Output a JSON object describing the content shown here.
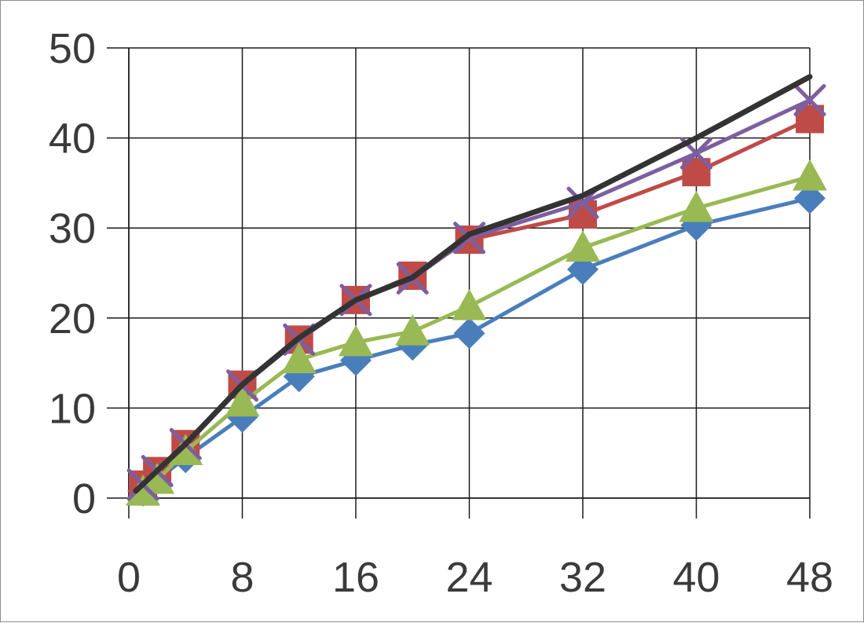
{
  "chart_data": {
    "type": "line",
    "title": "",
    "xlabel": "",
    "ylabel": "",
    "xlim": [
      0,
      48
    ],
    "ylim": [
      0,
      50
    ],
    "x_ticks": [
      "0",
      "8",
      "16",
      "24",
      "32",
      "40",
      "48"
    ],
    "y_ticks": [
      "0",
      "10",
      "20",
      "30",
      "40",
      "50"
    ],
    "grid": true,
    "legend": "none",
    "series": [
      {
        "color": "#4a7ebb",
        "marker": "diamond",
        "points": [
          [
            1,
            0.8
          ],
          [
            4,
            4.5
          ],
          [
            8,
            9.0
          ],
          [
            12,
            13.5
          ],
          [
            16,
            15.3
          ],
          [
            20,
            17.0
          ],
          [
            24,
            18.3
          ],
          [
            32,
            25.4
          ],
          [
            40,
            30.3
          ],
          [
            48,
            33.3
          ]
        ]
      },
      {
        "color": "#be4b48",
        "marker": "square",
        "points": [
          [
            1,
            1.5
          ],
          [
            2,
            3.0
          ],
          [
            4,
            6.0
          ],
          [
            8,
            12.6
          ],
          [
            12,
            17.6
          ],
          [
            16,
            22.0
          ],
          [
            20,
            24.7
          ],
          [
            24,
            28.7
          ],
          [
            32,
            31.5
          ],
          [
            40,
            36.2
          ],
          [
            48,
            42.1
          ]
        ]
      },
      {
        "color": "#98b954",
        "marker": "triangle",
        "points": [
          [
            1,
            0.7
          ],
          [
            2,
            2.0
          ],
          [
            4,
            5.2
          ],
          [
            8,
            10.6
          ],
          [
            12,
            15.4
          ],
          [
            16,
            17.3
          ],
          [
            20,
            18.5
          ],
          [
            24,
            21.3
          ],
          [
            32,
            27.8
          ],
          [
            40,
            32.2
          ],
          [
            48,
            35.7
          ]
        ]
      },
      {
        "color": "#7d5fa0",
        "marker": "x",
        "points": [
          [
            1,
            1.5
          ],
          [
            2,
            3.0
          ],
          [
            4,
            6.0
          ],
          [
            8,
            12.5
          ],
          [
            12,
            17.6
          ],
          [
            16,
            22.0
          ],
          [
            20,
            24.4
          ],
          [
            24,
            28.9
          ],
          [
            32,
            32.8
          ],
          [
            40,
            38.3
          ],
          [
            48,
            44.2
          ]
        ]
      },
      {
        "color": "#333333",
        "marker": "none",
        "points": [
          [
            0.5,
            0.8
          ],
          [
            4,
            6.0
          ],
          [
            8,
            12.6
          ],
          [
            12,
            17.8
          ],
          [
            16,
            22.0
          ],
          [
            20,
            24.5
          ],
          [
            24,
            29.3
          ],
          [
            32,
            33.6
          ],
          [
            40,
            40.0
          ],
          [
            48,
            46.8
          ]
        ]
      }
    ]
  }
}
